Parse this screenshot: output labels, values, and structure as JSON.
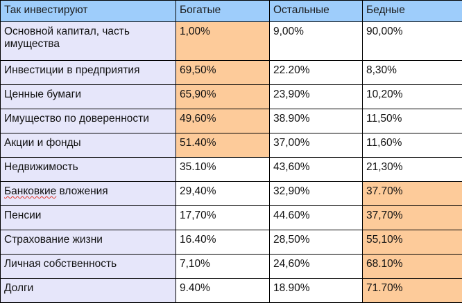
{
  "table": {
    "headers": [
      "Так инвестируют",
      "Богатые",
      "Остальные",
      "Бедные"
    ],
    "colors": {
      "header_bg": "#9ecdfb",
      "label_bg": "#e6e6fa",
      "highlight_bg": "#fdcb9a",
      "cell_bg": "#ffffff"
    },
    "rows": [
      {
        "label": "Основной капитал, часть имущества",
        "values": [
          "1,00%",
          "9,00%",
          "90,00%"
        ],
        "highlight": [
          true,
          false,
          false
        ],
        "tall": true
      },
      {
        "label": "Инвестиции в предприятия",
        "values": [
          "69,50%",
          "22.20%",
          "8,30%"
        ],
        "highlight": [
          true,
          false,
          false
        ]
      },
      {
        "label": "Ценные бумаги",
        "values": [
          "65,90%",
          "23,90%",
          "10,20%"
        ],
        "highlight": [
          true,
          false,
          false
        ]
      },
      {
        "label": "Имущество по доверенности",
        "values": [
          "49,60%",
          "38.90%",
          "11,50%"
        ],
        "highlight": [
          true,
          false,
          false
        ]
      },
      {
        "label": "Акции и фонды",
        "values": [
          "51.40%",
          "37,00%",
          "11,60%"
        ],
        "highlight": [
          true,
          false,
          false
        ]
      },
      {
        "label": "Недвижимость",
        "values": [
          "35.10%",
          "43,60%",
          "21,30%"
        ],
        "highlight": [
          false,
          false,
          false
        ]
      },
      {
        "label": "Банковкие вложения",
        "values": [
          "29,40%",
          "32,90%",
          "37.70%"
        ],
        "highlight": [
          false,
          false,
          true
        ],
        "label_spellcheck_word": "Банковкие",
        "label_rest": " вложения"
      },
      {
        "label": "Пенсии",
        "values": [
          "17,70%",
          "44.60%",
          "37,70%"
        ],
        "highlight": [
          false,
          false,
          true
        ]
      },
      {
        "label": "Страхование жизни",
        "values": [
          "16.40%",
          "28,50%",
          "55,10%"
        ],
        "highlight": [
          false,
          false,
          true
        ]
      },
      {
        "label": "Личная собственность",
        "values": [
          "7,10%",
          "24,60%",
          "68.10%"
        ],
        "highlight": [
          false,
          false,
          true
        ]
      },
      {
        "label": "Долги",
        "values": [
          "9.40%",
          "18.90%",
          "71.70%"
        ],
        "highlight": [
          false,
          false,
          true
        ]
      }
    ]
  }
}
